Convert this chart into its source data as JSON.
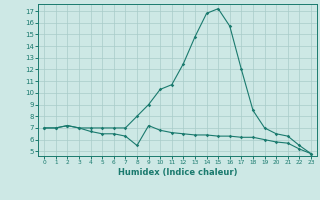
{
  "xlabel": "Humidex (Indice chaleur)",
  "bg_color": "#cde8e5",
  "line_color": "#1a7a6e",
  "grid_color": "#a8ccc9",
  "x_ticks": [
    0,
    1,
    2,
    3,
    4,
    5,
    6,
    7,
    8,
    9,
    10,
    11,
    12,
    13,
    14,
    15,
    16,
    17,
    18,
    19,
    20,
    21,
    22,
    23
  ],
  "y_ticks": [
    5,
    6,
    7,
    8,
    9,
    10,
    11,
    12,
    13,
    14,
    15,
    16,
    17
  ],
  "xlim": [
    -0.5,
    23.5
  ],
  "ylim": [
    4.6,
    17.6
  ],
  "series1_x": [
    0,
    1,
    2,
    3,
    4,
    5,
    6,
    7,
    8,
    9,
    10,
    11,
    12,
    13,
    14,
    15,
    16,
    17,
    18,
    19,
    20,
    21,
    22,
    23
  ],
  "series1_y": [
    7.0,
    7.0,
    7.2,
    7.0,
    6.7,
    6.5,
    6.5,
    6.3,
    5.5,
    7.2,
    6.8,
    6.6,
    6.5,
    6.4,
    6.4,
    6.3,
    6.3,
    6.2,
    6.2,
    6.0,
    5.8,
    5.7,
    5.2,
    4.8
  ],
  "series2_x": [
    0,
    1,
    2,
    3,
    4,
    5,
    6,
    7,
    8,
    9,
    10,
    11,
    12,
    13,
    14,
    15,
    16,
    17,
    18,
    19,
    20,
    21,
    22,
    23
  ],
  "series2_y": [
    7.0,
    7.0,
    7.2,
    7.0,
    7.0,
    7.0,
    7.0,
    7.0,
    8.0,
    9.0,
    10.3,
    10.7,
    12.5,
    14.8,
    16.8,
    17.2,
    15.7,
    12.0,
    8.5,
    7.0,
    6.5,
    6.3,
    5.5,
    4.8
  ]
}
